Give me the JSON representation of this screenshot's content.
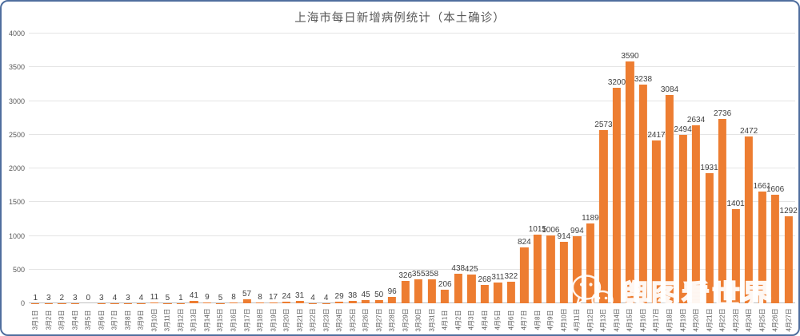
{
  "title": "上海市每日新增病例统计（本土确诊）",
  "watermark": {
    "text": "舆图看世界",
    "icon": "wechat-icon"
  },
  "colors": {
    "bar": "#ED7D31",
    "border": "#4f6e9e",
    "title_text": "#595959",
    "axis_text": "#595959",
    "value_label_text": "#3f3f3f",
    "gridline": "#e4e4e4"
  },
  "chart_data": {
    "type": "bar",
    "title": "上海市每日新增病例统计（本土确诊）",
    "xlabel": "",
    "ylabel": "",
    "ylim": [
      0,
      4000
    ],
    "yticks": [
      0,
      500,
      1000,
      1500,
      2000,
      2500,
      3000,
      3500,
      4000
    ],
    "grid": true,
    "legend": "none",
    "bar_color": "#ED7D31",
    "categories": [
      "3月1日",
      "3月2日",
      "3月3日",
      "3月4日",
      "3月5日",
      "3月6日",
      "3月7日",
      "3月8日",
      "3月9日",
      "3月10日",
      "3月11日",
      "3月12日",
      "3月13日",
      "3月14日",
      "3月15日",
      "3月16日",
      "3月17日",
      "3月18日",
      "3月19日",
      "3月20日",
      "3月21日",
      "3月22日",
      "3月23日",
      "3月24日",
      "3月25日",
      "3月26日",
      "3月27日",
      "3月28日",
      "3月29日",
      "3月30日",
      "3月31日",
      "4月1日",
      "4月2日",
      "4月3日",
      "4月4日",
      "4月5日",
      "4月6日",
      "4月7日",
      "4月8日",
      "4月9日",
      "4月10日",
      "4月11日",
      "4月12日",
      "4月13日",
      "4月14日",
      "4月15日",
      "4月16日",
      "4月17日",
      "4月18日",
      "4月19日",
      "4月20日",
      "4月21日",
      "4月22日",
      "4月23日",
      "4月24日",
      "4月25日",
      "4月26日",
      "4月27日"
    ],
    "values": [
      1,
      3,
      2,
      3,
      0,
      3,
      4,
      3,
      4,
      11,
      5,
      1,
      41,
      9,
      5,
      8,
      57,
      8,
      17,
      24,
      31,
      4,
      4,
      29,
      38,
      45,
      50,
      96,
      326,
      355,
      358,
      206,
      438,
      425,
      268,
      311,
      322,
      824,
      1015,
      1006,
      914,
      994,
      1189,
      2573,
      3200,
      3590,
      3238,
      2417,
      3084,
      2494,
      2634,
      1931,
      2736,
      1401,
      2472,
      1661,
      1606,
      1292
    ]
  }
}
